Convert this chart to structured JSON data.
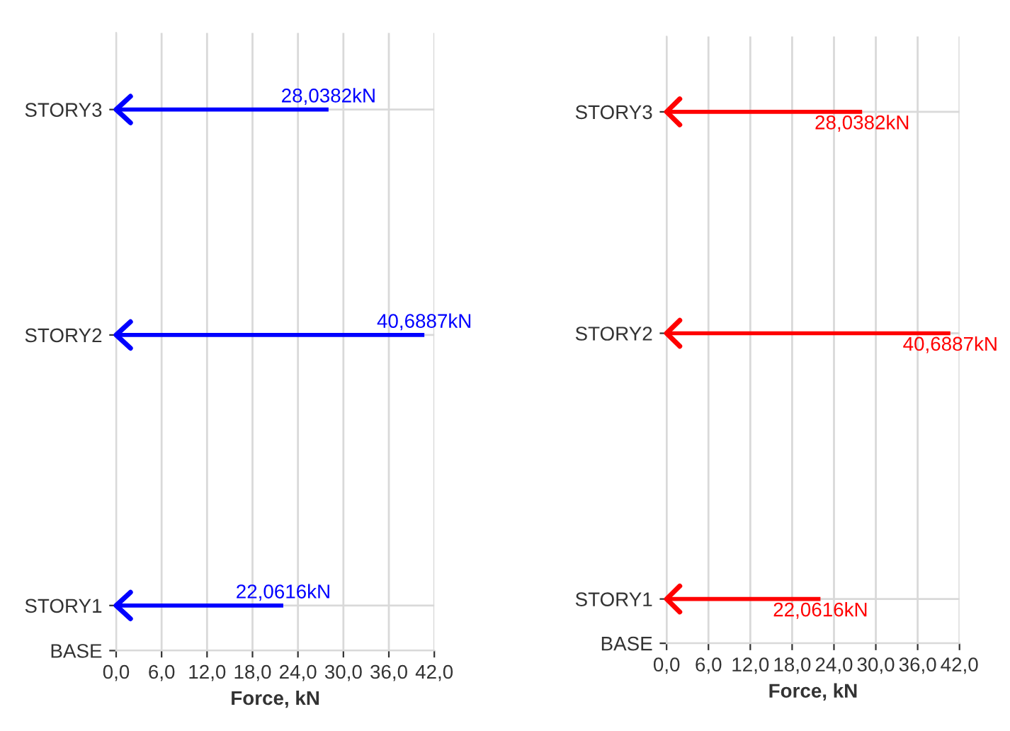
{
  "chart_data": [
    {
      "type": "bar",
      "orientation": "horizontal",
      "xlabel": "Force, kN",
      "categories": [
        null,
        "STORY3",
        null,
        null,
        null,
        null,
        "STORY2",
        null,
        null,
        null,
        null,
        null,
        "STORY1",
        "BASE"
      ],
      "values": [
        null,
        28.0382,
        null,
        null,
        null,
        null,
        40.6887,
        null,
        null,
        null,
        null,
        null,
        22.0616,
        null
      ],
      "color": "#0000ff",
      "value_labels": [
        null,
        "28,0382kN",
        null,
        null,
        null,
        null,
        "40,6887kN",
        null,
        null,
        null,
        null,
        null,
        "22,0616kN",
        null
      ],
      "xlim": [
        0,
        42
      ],
      "xticks": [
        {
          "value": 0,
          "label": "0,0"
        },
        {
          "value": 6,
          "label": "6,0"
        },
        {
          "value": 12,
          "label": "12,0"
        },
        {
          "value": 18,
          "label": "18,0"
        },
        {
          "value": 24,
          "label": "24,0"
        },
        {
          "value": 30,
          "label": "30,0"
        },
        {
          "value": 36,
          "label": "36,0"
        },
        {
          "value": 42,
          "label": "42,0"
        }
      ],
      "grid": true
    },
    {
      "type": "bar",
      "orientation": "horizontal",
      "xlabel": "Force, kN",
      "categories": [
        null,
        "STORY3",
        null,
        null,
        null,
        null,
        "STORY2",
        null,
        null,
        null,
        null,
        null,
        "STORY1",
        "BASE"
      ],
      "values": [
        null,
        28.0382,
        null,
        null,
        null,
        null,
        40.6887,
        null,
        null,
        null,
        null,
        null,
        22.0616,
        null
      ],
      "color": "#ff0000",
      "value_labels": [
        null,
        "28,0382kN",
        null,
        null,
        null,
        null,
        "40,6887kN",
        null,
        null,
        null,
        null,
        null,
        "22,0616kN",
        null
      ],
      "xlim": [
        0,
        42
      ],
      "xticks": [
        {
          "value": 0,
          "label": "0,0"
        },
        {
          "value": 6,
          "label": "6,0"
        },
        {
          "value": 12,
          "label": "12,0"
        },
        {
          "value": 18,
          "label": "18,0"
        },
        {
          "value": 24,
          "label": "24,0"
        },
        {
          "value": 30,
          "label": "30,0"
        },
        {
          "value": 36,
          "label": "36,0"
        },
        {
          "value": 42,
          "label": "42,0"
        }
      ],
      "grid": true
    }
  ]
}
